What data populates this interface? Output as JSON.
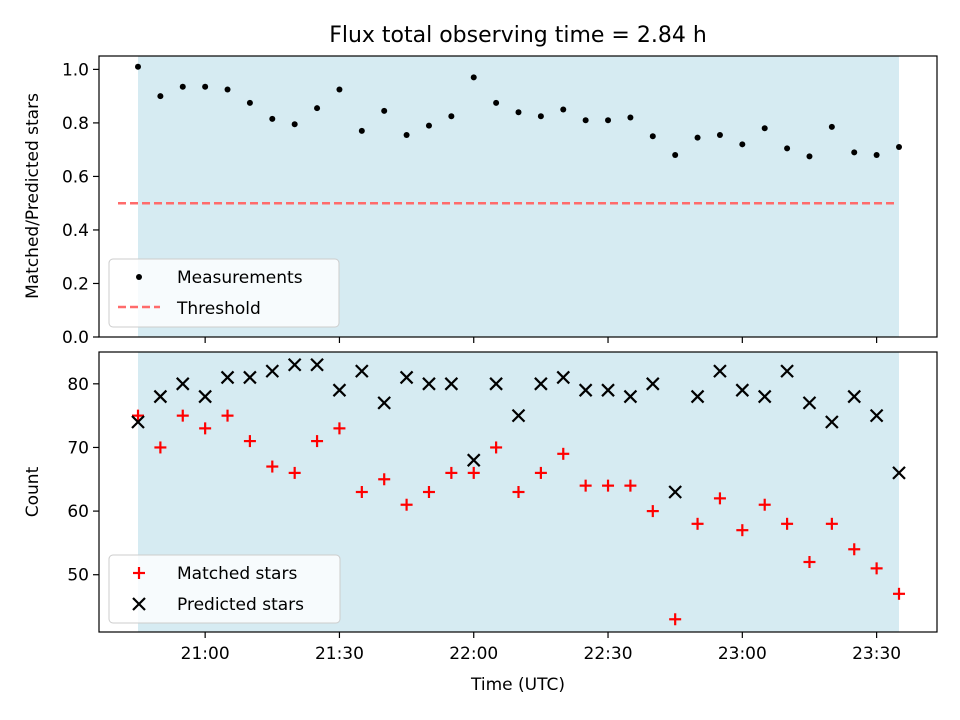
{
  "chart_data": [
    {
      "type": "scatter",
      "title": "Flux total observing time = 2.84 h",
      "xlabel": "",
      "ylabel": "Matched/Predicted stars",
      "ylim": [
        0,
        1.05
      ],
      "yticks": [
        "0.0",
        "0.2",
        "0.4",
        "0.6",
        "0.8",
        "1.0"
      ],
      "shaded_interval": [
        "20:45",
        "23:35"
      ],
      "shade_color": "#add8e6",
      "legend": {
        "location": "lower-left",
        "entries": [
          "Measurements",
          "Threshold"
        ]
      },
      "threshold": {
        "name": "Threshold",
        "value": 0.5,
        "color": "#ff6b6b",
        "style": "dashed"
      },
      "series": [
        {
          "name": "Measurements",
          "marker": "dot",
          "color": "#000000",
          "x": [
            "20:45",
            "20:50",
            "20:55",
            "21:00",
            "21:05",
            "21:10",
            "21:15",
            "21:20",
            "21:25",
            "21:30",
            "21:35",
            "21:40",
            "21:45",
            "21:50",
            "21:55",
            "22:00",
            "22:05",
            "22:10",
            "22:15",
            "22:20",
            "22:25",
            "22:30",
            "22:35",
            "22:40",
            "22:45",
            "22:50",
            "22:55",
            "23:00",
            "23:05",
            "23:10",
            "23:15",
            "23:20",
            "23:25",
            "23:30",
            "23:35"
          ],
          "y": [
            1.01,
            0.9,
            0.935,
            0.935,
            0.925,
            0.875,
            0.815,
            0.795,
            0.855,
            0.925,
            0.77,
            0.845,
            0.755,
            0.79,
            0.825,
            0.97,
            0.875,
            0.84,
            0.825,
            0.85,
            0.81,
            0.81,
            0.82,
            0.75,
            0.68,
            0.745,
            0.755,
            0.72,
            0.78,
            0.705,
            0.675,
            0.785,
            0.69,
            0.68,
            0.71
          ]
        }
      ]
    },
    {
      "type": "scatter",
      "title": "",
      "xlabel": "Time (UTC)",
      "ylabel": "Count",
      "ylim": [
        41,
        85
      ],
      "yticks": [
        "50",
        "60",
        "70",
        "80"
      ],
      "xticks": [
        "21:00",
        "21:30",
        "22:00",
        "22:30",
        "23:00",
        "23:30"
      ],
      "shaded_interval": [
        "20:45",
        "23:35"
      ],
      "shade_color": "#add8e6",
      "legend": {
        "location": "lower-left",
        "entries": [
          "Matched stars",
          "Predicted stars"
        ]
      },
      "series": [
        {
          "name": "Matched stars",
          "marker": "plus",
          "color": "#ff0000",
          "x": [
            "20:45",
            "20:50",
            "20:55",
            "21:00",
            "21:05",
            "21:10",
            "21:15",
            "21:20",
            "21:25",
            "21:30",
            "21:35",
            "21:40",
            "21:45",
            "21:50",
            "21:55",
            "22:00",
            "22:05",
            "22:10",
            "22:15",
            "22:20",
            "22:25",
            "22:30",
            "22:35",
            "22:40",
            "22:45",
            "22:50",
            "22:55",
            "23:00",
            "23:05",
            "23:10",
            "23:15",
            "23:20",
            "23:25",
            "23:30",
            "23:35"
          ],
          "y": [
            75,
            70,
            75,
            73,
            75,
            71,
            67,
            66,
            71,
            73,
            63,
            65,
            61,
            63,
            66,
            66,
            70,
            63,
            66,
            69,
            64,
            64,
            64,
            60,
            43,
            58,
            62,
            57,
            61,
            58,
            52,
            58,
            54,
            51,
            47
          ]
        },
        {
          "name": "Predicted stars",
          "marker": "x",
          "color": "#000000",
          "x": [
            "20:45",
            "20:50",
            "20:55",
            "21:00",
            "21:05",
            "21:10",
            "21:15",
            "21:20",
            "21:25",
            "21:30",
            "21:35",
            "21:40",
            "21:45",
            "21:50",
            "21:55",
            "22:00",
            "22:05",
            "22:10",
            "22:15",
            "22:20",
            "22:25",
            "22:30",
            "22:35",
            "22:40",
            "22:45",
            "22:50",
            "22:55",
            "23:00",
            "23:05",
            "23:10",
            "23:15",
            "23:20",
            "23:25",
            "23:30",
            "23:35"
          ],
          "y": [
            74,
            78,
            80,
            78,
            81,
            81,
            82,
            83,
            83,
            79,
            82,
            77,
            81,
            80,
            80,
            68,
            80,
            75,
            80,
            81,
            79,
            79,
            78,
            80,
            63,
            78,
            82,
            79,
            78,
            82,
            77,
            74,
            78,
            75,
            66
          ]
        }
      ]
    }
  ]
}
